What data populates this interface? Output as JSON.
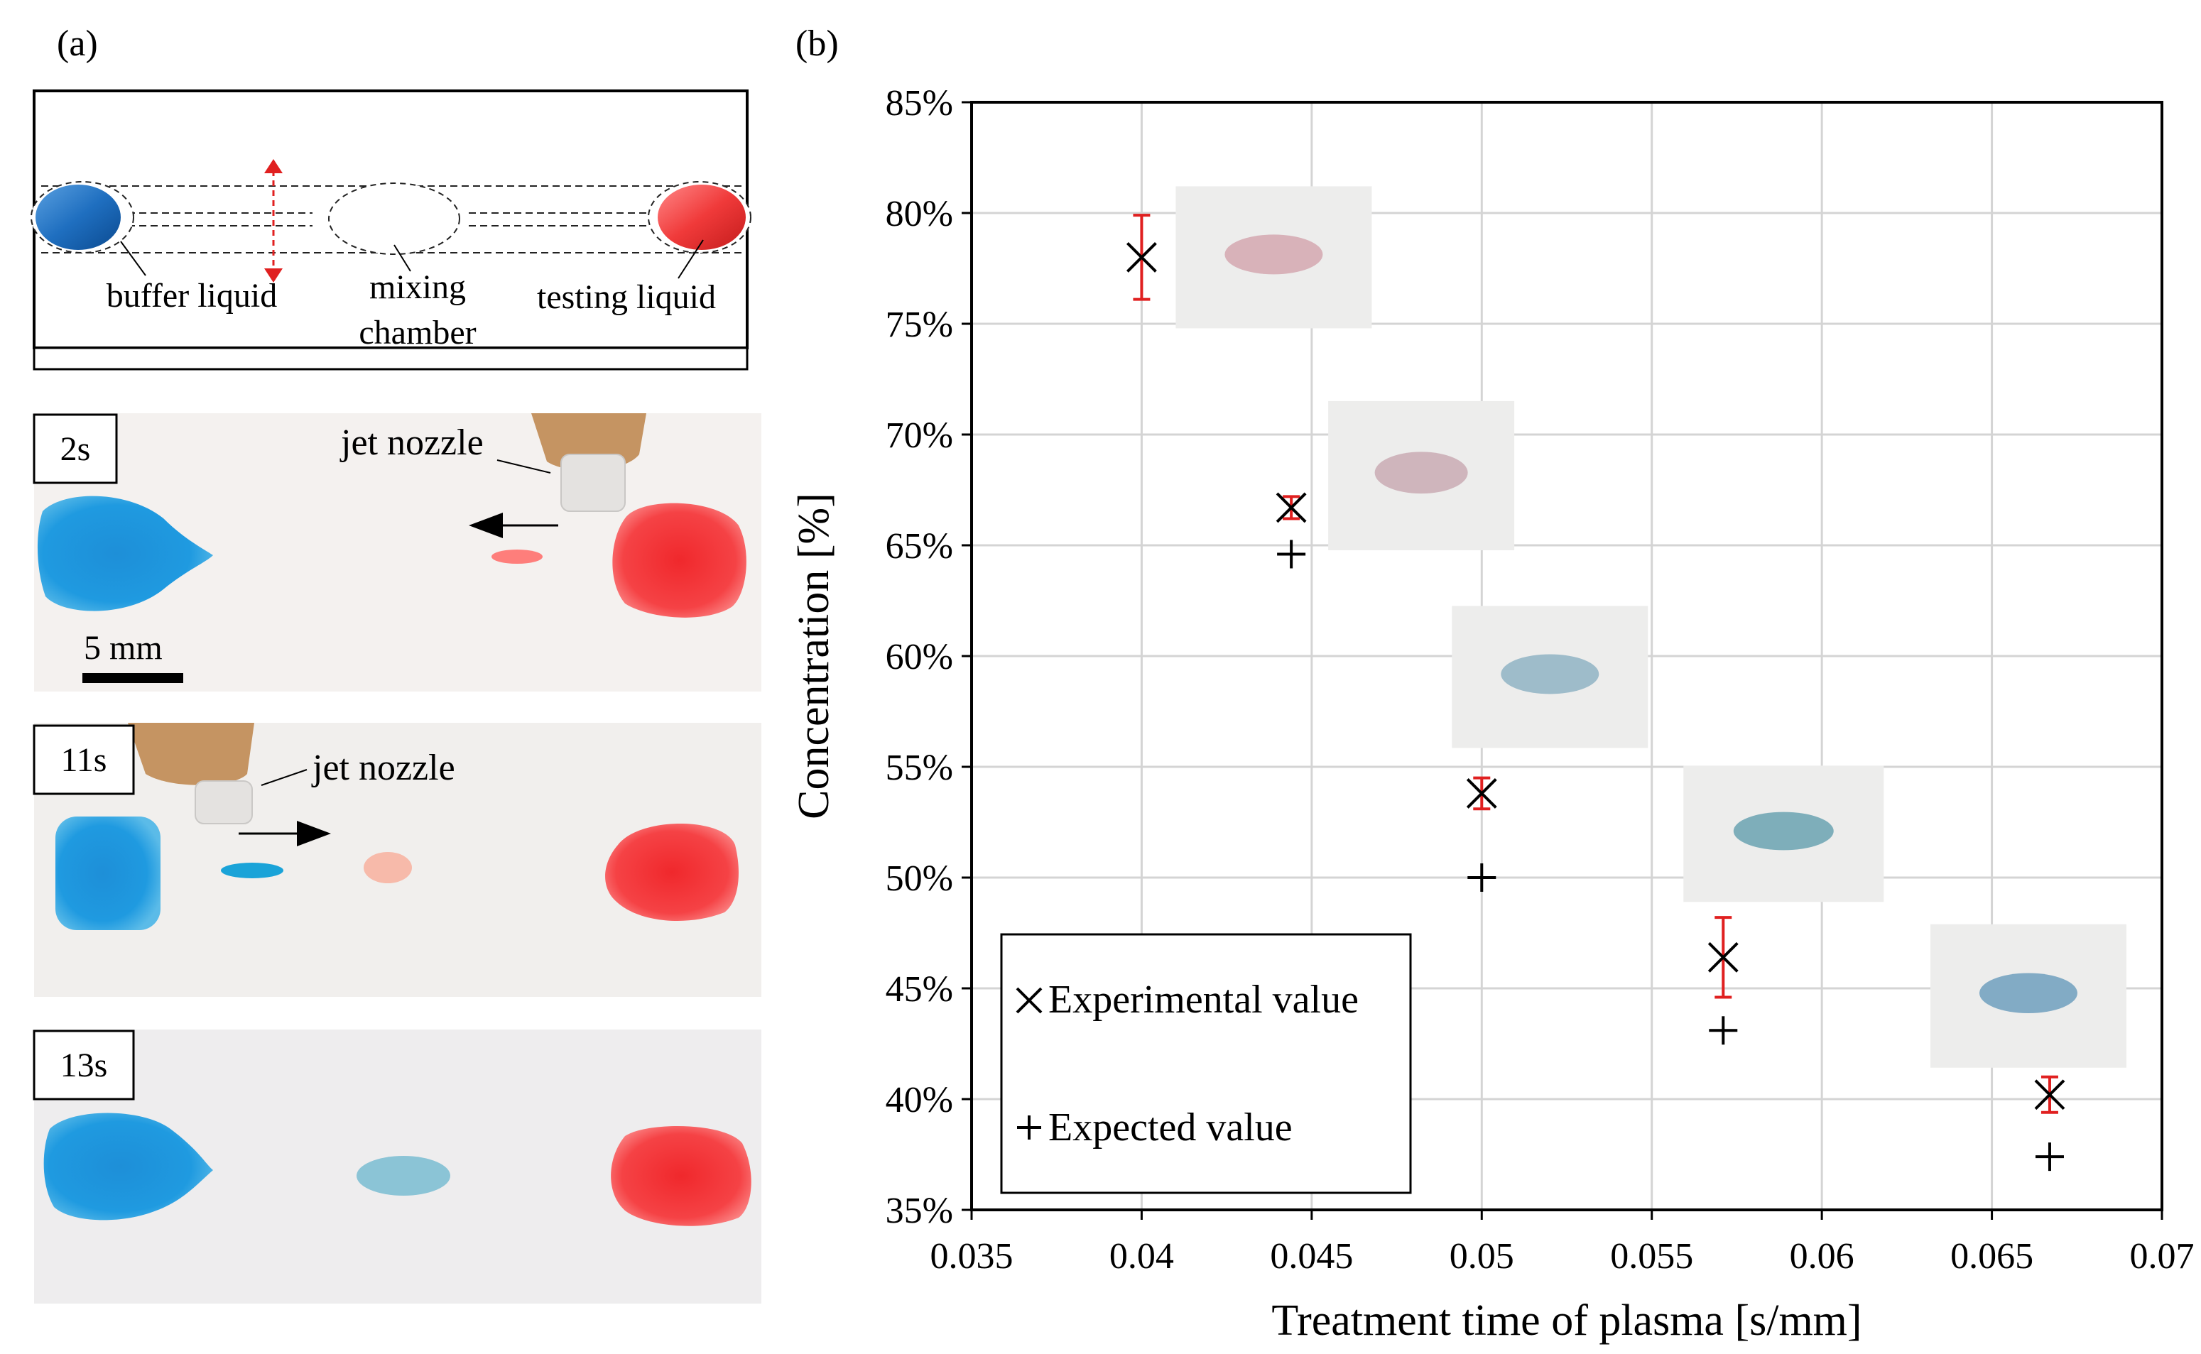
{
  "panel_a": {
    "label": "(a)",
    "schematic": {
      "buffer_label": "buffer liquid",
      "mixing_label_line1": "mixing",
      "mixing_label_line2": "chamber",
      "testing_label": "testing liquid"
    },
    "frames": [
      {
        "time": "2s",
        "annotation": "jet nozzle",
        "arrow_direction": "left",
        "scale_bar": "5 mm"
      },
      {
        "time": "11s",
        "annotation": "jet nozzle",
        "arrow_direction": "right"
      },
      {
        "time": "13s"
      }
    ]
  },
  "chart_data": {
    "type": "scatter",
    "panel_label": "(b)",
    "title": "",
    "xlabel": "Treatment time of plasma [s/mm]",
    "ylabel": "Concentration [%]",
    "xlim": [
      0.035,
      0.07
    ],
    "ylim": [
      35,
      85
    ],
    "x_ticks": [
      0.035,
      0.04,
      0.045,
      0.05,
      0.055,
      0.06,
      0.065,
      0.07
    ],
    "x_tick_labels": [
      "0.035",
      "0.04",
      "0.045",
      "0.05",
      "0.055",
      "0.06",
      "0.065",
      "0.07"
    ],
    "y_ticks": [
      35,
      40,
      45,
      50,
      55,
      60,
      65,
      70,
      75,
      80,
      85
    ],
    "y_tick_labels": [
      "35%",
      "40%",
      "45%",
      "50%",
      "55%",
      "60%",
      "65%",
      "70%",
      "75%",
      "80%",
      "85%"
    ],
    "grid": true,
    "legend_position": "bottom-left",
    "series": [
      {
        "name": "Experimental value",
        "marker": "x",
        "x": [
          0.04,
          0.0444,
          0.05,
          0.0571,
          0.0667
        ],
        "y": [
          78.0,
          66.7,
          53.8,
          46.4,
          40.2
        ],
        "error": [
          1.9,
          0.5,
          0.7,
          1.8,
          0.8
        ],
        "error_color": "#e02020"
      },
      {
        "name": "Expected value",
        "marker": "+",
        "x": [
          0.0444,
          0.05,
          0.0571,
          0.0667
        ],
        "y": [
          64.6,
          50.0,
          43.1,
          37.4
        ]
      }
    ],
    "inset_photos": [
      {
        "x": 0.04,
        "y": 78.0,
        "tint": "#d3a7b0"
      },
      {
        "x": 0.0444,
        "y": 66.7,
        "tint": "#c9aab4"
      },
      {
        "x": 0.05,
        "y": 53.8,
        "tint": "#8fb3c4"
      },
      {
        "x": 0.0571,
        "y": 46.4,
        "tint": "#6aa2b2"
      },
      {
        "x": 0.0667,
        "y": 40.2,
        "tint": "#6f9fbe"
      }
    ]
  }
}
